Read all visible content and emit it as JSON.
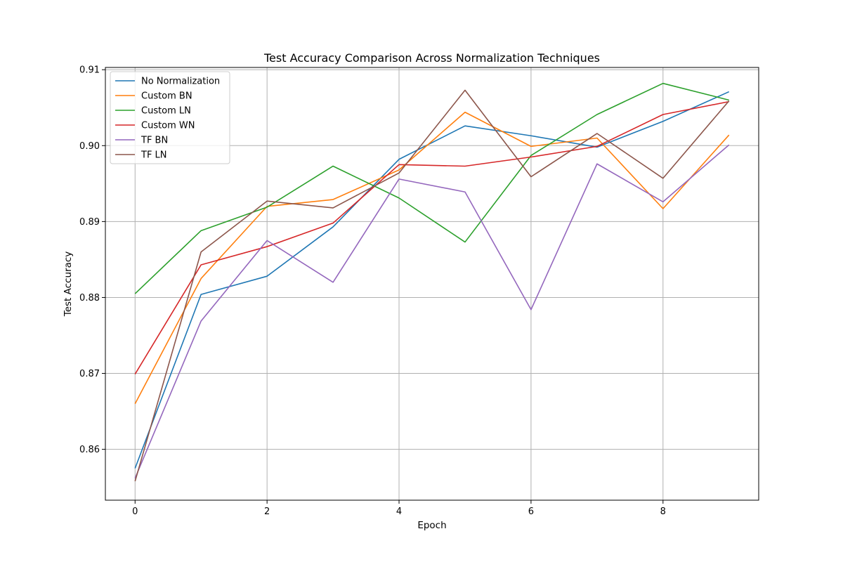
{
  "chart_data": {
    "type": "line",
    "title": "Test Accuracy Comparison Across Normalization Techniques",
    "xlabel": "Epoch",
    "ylabel": "Test Accuracy",
    "x": [
      0,
      1,
      2,
      3,
      4,
      5,
      6,
      7,
      8,
      9
    ],
    "xlim": [
      -0.45,
      9.45
    ],
    "ylim": [
      0.8533,
      0.9103
    ],
    "xticks": [
      0,
      2,
      4,
      6,
      8
    ],
    "xtick_labels": [
      "0",
      "2",
      "4",
      "6",
      "8"
    ],
    "yticks": [
      0.86,
      0.87,
      0.88,
      0.89,
      0.9,
      0.91
    ],
    "ytick_labels": [
      "0.86",
      "0.87",
      "0.88",
      "0.89",
      "0.90",
      "0.91"
    ],
    "grid": true,
    "legend_position": "top-left",
    "series": [
      {
        "name": "No Normalization",
        "color": "#1f77b4",
        "values": [
          0.8575,
          0.8804,
          0.8828,
          0.8893,
          0.8982,
          0.9026,
          0.9013,
          0.8998,
          0.9032,
          0.9071
        ]
      },
      {
        "name": "Custom BN",
        "color": "#ff7f0e",
        "values": [
          0.866,
          0.8825,
          0.892,
          0.8929,
          0.8968,
          0.9044,
          0.8999,
          0.901,
          0.8917,
          0.9014
        ]
      },
      {
        "name": "Custom LN",
        "color": "#2ca02c",
        "values": [
          0.8805,
          0.8888,
          0.8919,
          0.8973,
          0.8931,
          0.8873,
          0.8987,
          0.9041,
          0.9082,
          0.906
        ]
      },
      {
        "name": "Custom WN",
        "color": "#d62728",
        "values": [
          0.8699,
          0.8843,
          0.8867,
          0.8898,
          0.8975,
          0.8973,
          0.8985,
          0.8999,
          0.9041,
          0.9058
        ]
      },
      {
        "name": "TF BN",
        "color": "#9467bd",
        "values": [
          0.8562,
          0.8769,
          0.8875,
          0.882,
          0.8956,
          0.8939,
          0.8784,
          0.8976,
          0.8926,
          0.9001
        ]
      },
      {
        "name": "TF LN",
        "color": "#8c564b",
        "values": [
          0.8558,
          0.886,
          0.8927,
          0.8918,
          0.8964,
          0.9073,
          0.8959,
          0.9016,
          0.8957,
          0.9059
        ]
      }
    ]
  }
}
